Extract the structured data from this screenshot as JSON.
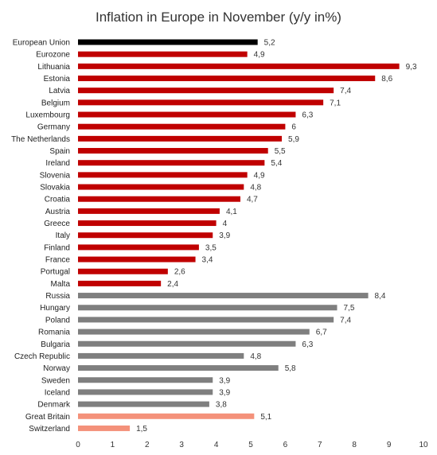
{
  "chart_data": {
    "type": "bar",
    "orientation": "horizontal",
    "title": "Inflation in Europe in November (y/y in%)",
    "xlabel": "",
    "ylabel": "",
    "xlim": [
      0,
      10
    ],
    "xticks": [
      0,
      1,
      2,
      3,
      4,
      5,
      6,
      7,
      8,
      9,
      10
    ],
    "grid": false,
    "legend": "none",
    "colors": {
      "eu": "#000000",
      "eurozone": "#c00000",
      "non_eurozone": "#7f7f7f",
      "other": "#f4917a"
    },
    "categories": [
      "European Union",
      "Eurozone",
      "Lithuania",
      "Estonia",
      "Latvia",
      "Belgium",
      "Luxembourg",
      "Germany",
      "The Netherlands",
      "Spain",
      "Ireland",
      "Slovenia",
      "Slovakia",
      "Croatia",
      "Austria",
      "Greece",
      "Italy",
      "Finland",
      "France",
      "Portugal",
      "Malta",
      "Russia",
      "Hungary",
      "Poland",
      "Romania",
      "Bulgaria",
      "Czech Republic",
      "Norway",
      "Sweden",
      "Iceland",
      "Denmark",
      "Great Britain",
      "Switzerland"
    ],
    "values": [
      5.2,
      4.9,
      9.3,
      8.6,
      7.4,
      7.1,
      6.3,
      6,
      5.9,
      5.5,
      5.4,
      4.9,
      4.8,
      4.7,
      4.1,
      4,
      3.9,
      3.5,
      3.4,
      2.6,
      2.4,
      8.4,
      7.5,
      7.4,
      6.7,
      6.3,
      4.8,
      5.8,
      3.9,
      3.9,
      3.8,
      5.1,
      1.5
    ],
    "value_labels": [
      "5,2",
      "4,9",
      "9,3",
      "8,6",
      "7,4",
      "7,1",
      "6,3",
      "6",
      "5,9",
      "5,5",
      "5,4",
      "4,9",
      "4,8",
      "4,7",
      "4,1",
      "4",
      "3,9",
      "3,5",
      "3,4",
      "2,6",
      "2,4",
      "8,4",
      "7,5",
      "7,4",
      "6,7",
      "6,3",
      "4,8",
      "5,8",
      "3,9",
      "3,9",
      "3,8",
      "5,1",
      "1,5"
    ],
    "bar_groups": [
      "eu",
      "eurozone",
      "eurozone",
      "eurozone",
      "eurozone",
      "eurozone",
      "eurozone",
      "eurozone",
      "eurozone",
      "eurozone",
      "eurozone",
      "eurozone",
      "eurozone",
      "eurozone",
      "eurozone",
      "eurozone",
      "eurozone",
      "eurozone",
      "eurozone",
      "eurozone",
      "eurozone",
      "non_eurozone",
      "non_eurozone",
      "non_eurozone",
      "non_eurozone",
      "non_eurozone",
      "non_eurozone",
      "non_eurozone",
      "non_eurozone",
      "non_eurozone",
      "non_eurozone",
      "other",
      "other"
    ]
  }
}
